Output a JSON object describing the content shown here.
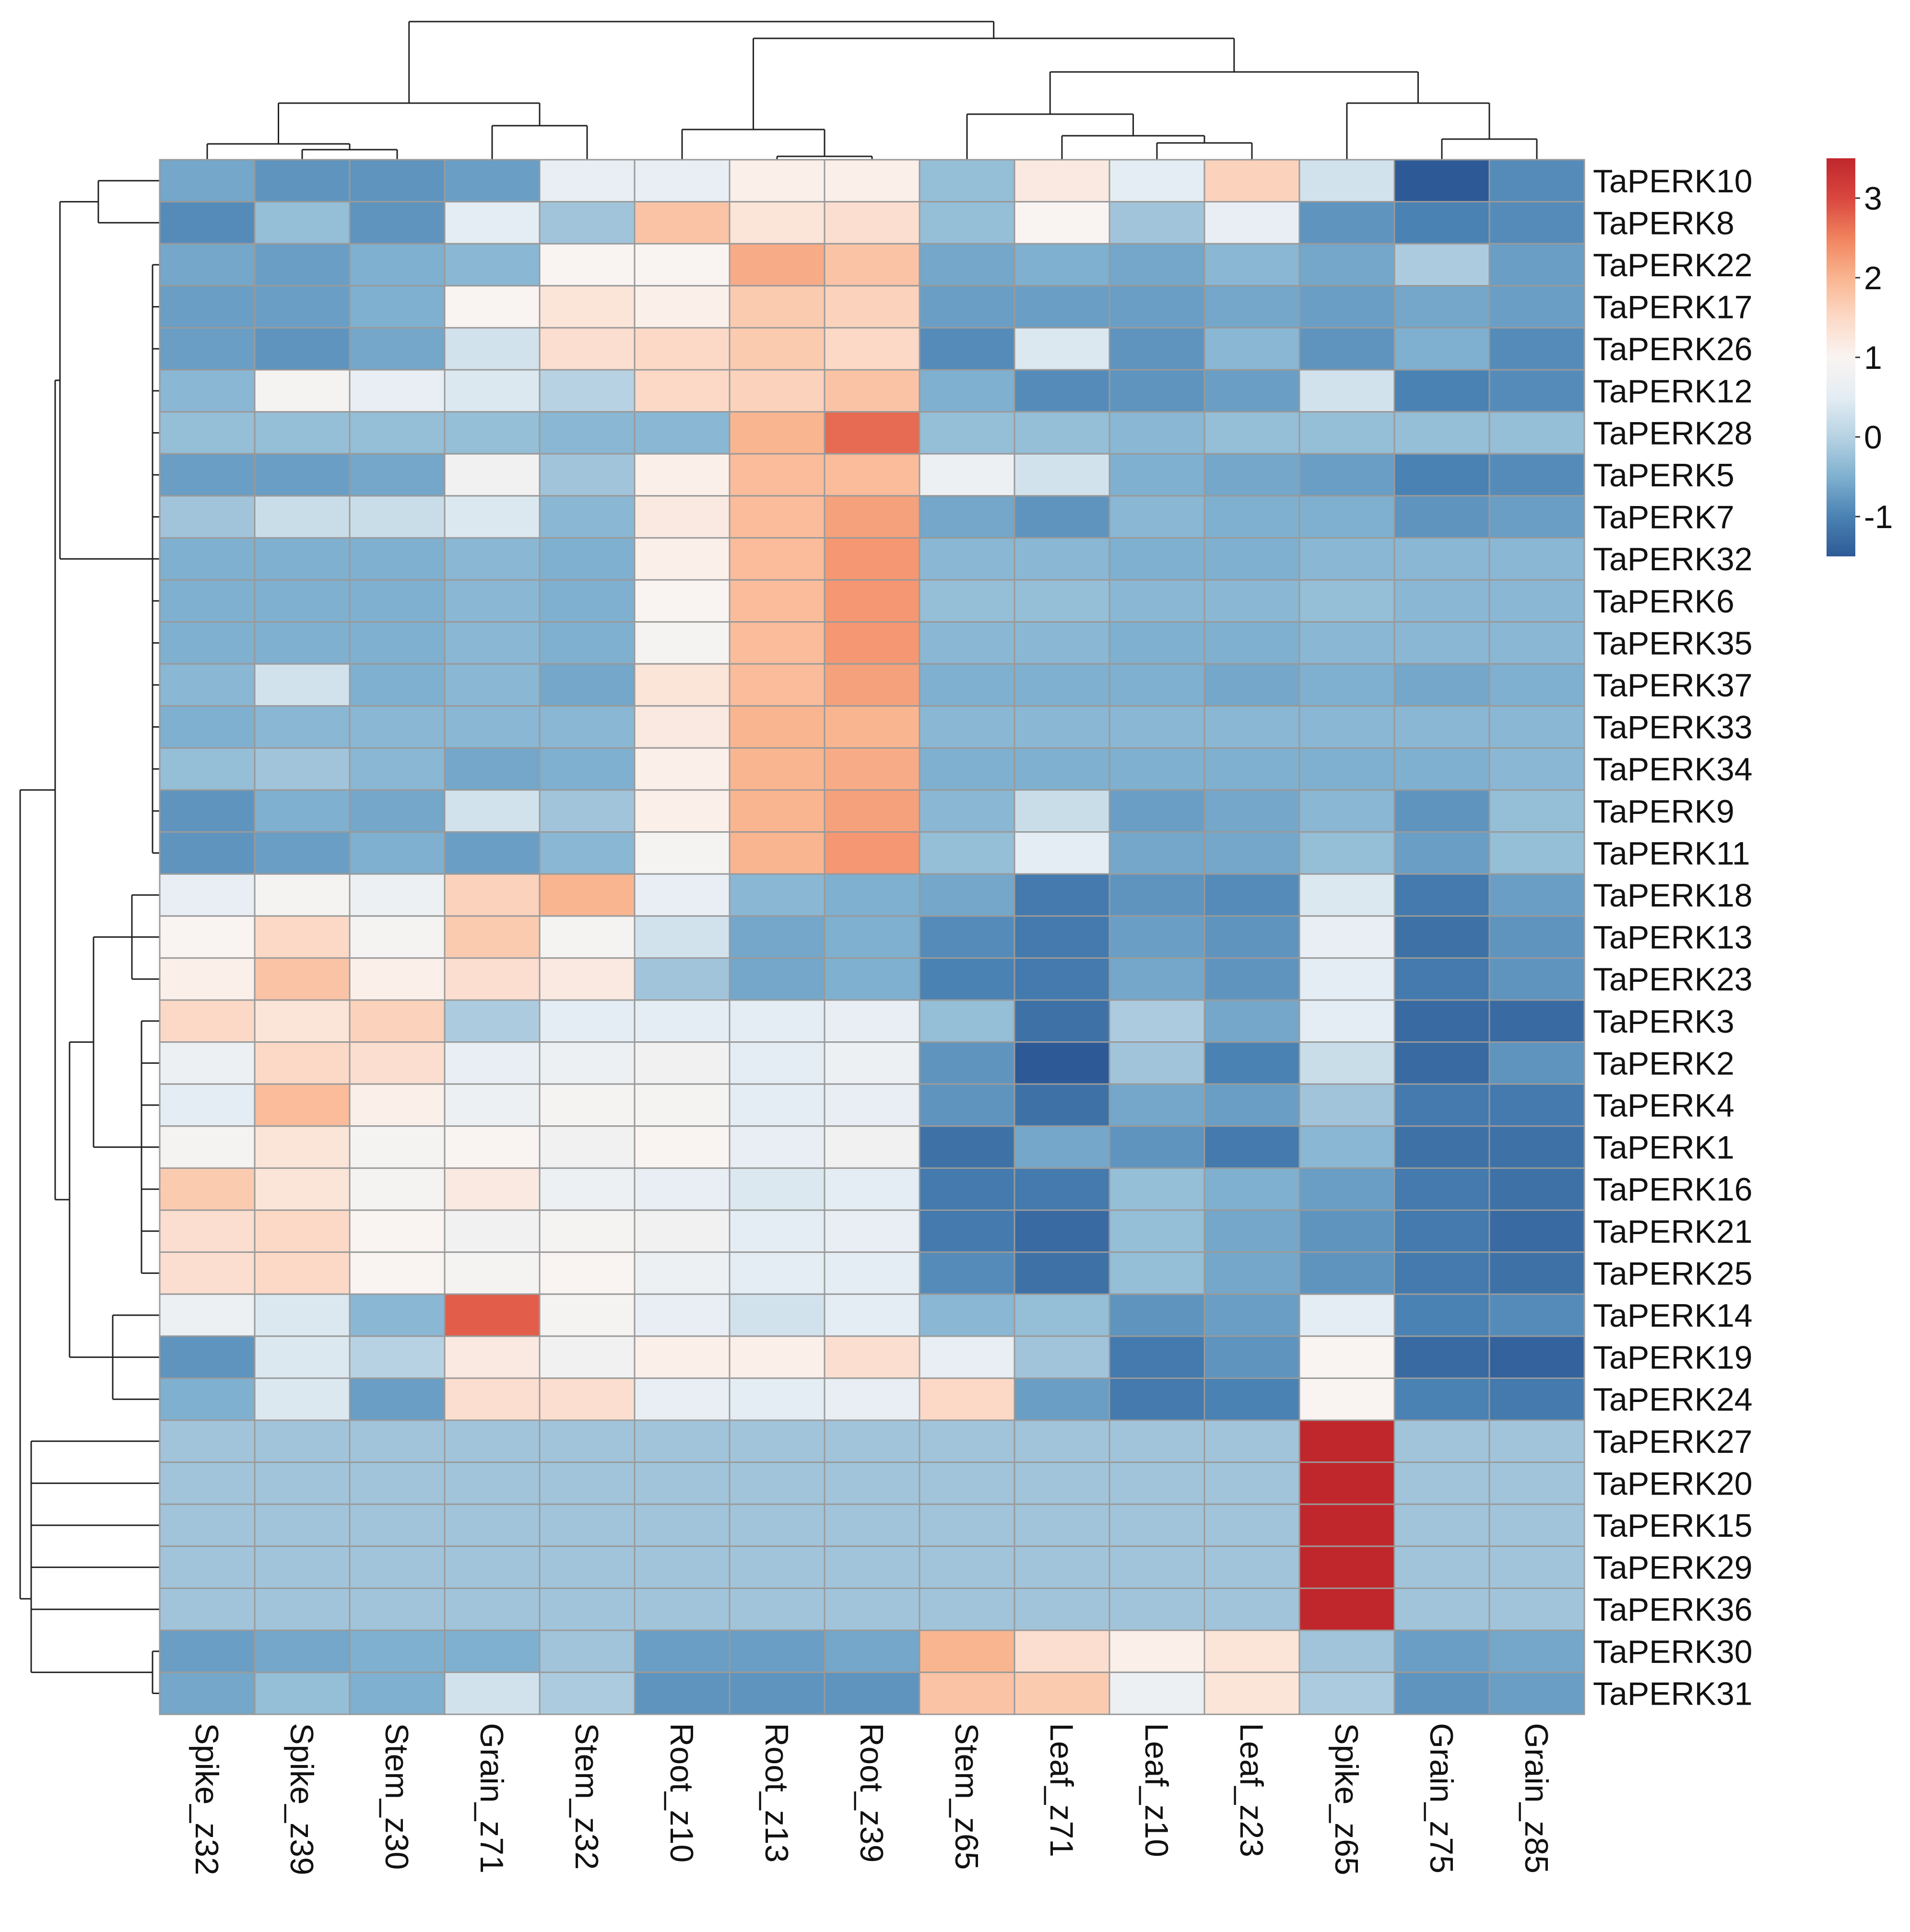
{
  "chart_data": {
    "type": "heatmap",
    "title": "",
    "columns": [
      "Spike_z32",
      "Spike_z39",
      "Stem_z30",
      "Grain_z71",
      "Stem_z32",
      "Root_z10",
      "Root_z13",
      "Root_z39",
      "Stem_z65",
      "Leaf_z71",
      "Leaf_z10",
      "Leaf_z23",
      "Spike_z65",
      "Grain_z75",
      "Grain_z85"
    ],
    "rows": [
      "TaPERK10",
      "TaPERK8",
      "TaPERK22",
      "TaPERK17",
      "TaPERK26",
      "TaPERK12",
      "TaPERK28",
      "TaPERK5",
      "TaPERK7",
      "TaPERK32",
      "TaPERK6",
      "TaPERK35",
      "TaPERK37",
      "TaPERK33",
      "TaPERK34",
      "TaPERK9",
      "TaPERK11",
      "TaPERK18",
      "TaPERK13",
      "TaPERK23",
      "TaPERK3",
      "TaPERK2",
      "TaPERK4",
      "TaPERK1",
      "TaPERK16",
      "TaPERK21",
      "TaPERK25",
      "TaPERK14",
      "TaPERK19",
      "TaPERK24",
      "TaPERK27",
      "TaPERK20",
      "TaPERK15",
      "TaPERK29",
      "TaPERK36",
      "TaPERK30",
      "TaPERK31"
    ],
    "values": [
      [
        -0.6,
        -0.8,
        -0.8,
        -0.7,
        0.6,
        0.6,
        1.1,
        1.1,
        -0.3,
        1.2,
        0.5,
        1.6,
        0.3,
        -1.5,
        -0.9
      ],
      [
        -0.9,
        -0.3,
        -0.8,
        0.5,
        -0.2,
        1.8,
        1.3,
        1.4,
        -0.3,
        1.0,
        -0.2,
        0.6,
        -0.8,
        -1.0,
        -0.9
      ],
      [
        -0.6,
        -0.7,
        -0.5,
        -0.4,
        1.0,
        1.0,
        2.1,
        1.8,
        -0.6,
        -0.5,
        -0.6,
        -0.4,
        -0.6,
        -0.1,
        -0.7
      ],
      [
        -0.7,
        -0.7,
        -0.5,
        1.0,
        1.3,
        1.1,
        1.7,
        1.6,
        -0.7,
        -0.7,
        -0.7,
        -0.6,
        -0.7,
        -0.6,
        -0.7
      ],
      [
        -0.7,
        -0.8,
        -0.6,
        0.3,
        1.4,
        1.5,
        1.7,
        1.5,
        -0.9,
        0.4,
        -0.8,
        -0.4,
        -0.8,
        -0.5,
        -0.9
      ],
      [
        -0.4,
        0.9,
        0.6,
        0.4,
        0.0,
        1.5,
        1.6,
        1.8,
        -0.5,
        -0.9,
        -0.8,
        -0.7,
        0.3,
        -1.0,
        -0.9
      ],
      [
        -0.3,
        -0.3,
        -0.3,
        -0.3,
        -0.4,
        -0.4,
        2.0,
        2.7,
        -0.3,
        -0.3,
        -0.4,
        -0.3,
        -0.3,
        -0.3,
        -0.3
      ],
      [
        -0.7,
        -0.7,
        -0.6,
        0.8,
        -0.2,
        1.1,
        1.9,
        1.9,
        0.7,
        0.3,
        -0.5,
        -0.6,
        -0.7,
        -1.0,
        -0.9
      ],
      [
        -0.2,
        0.2,
        0.2,
        0.4,
        -0.4,
        1.2,
        1.9,
        2.2,
        -0.6,
        -0.8,
        -0.4,
        -0.5,
        -0.5,
        -0.8,
        -0.7
      ],
      [
        -0.5,
        -0.5,
        -0.5,
        -0.4,
        -0.5,
        1.1,
        1.9,
        2.3,
        -0.4,
        -0.4,
        -0.5,
        -0.5,
        -0.4,
        -0.4,
        -0.4
      ],
      [
        -0.5,
        -0.5,
        -0.5,
        -0.4,
        -0.5,
        1.0,
        1.9,
        2.3,
        -0.3,
        -0.3,
        -0.4,
        -0.4,
        -0.3,
        -0.4,
        -0.4
      ],
      [
        -0.5,
        -0.5,
        -0.5,
        -0.4,
        -0.5,
        0.9,
        1.9,
        2.3,
        -0.4,
        -0.4,
        -0.5,
        -0.5,
        -0.4,
        -0.4,
        -0.4
      ],
      [
        -0.4,
        0.3,
        -0.5,
        -0.4,
        -0.6,
        1.3,
        1.9,
        2.2,
        -0.5,
        -0.5,
        -0.5,
        -0.6,
        -0.5,
        -0.6,
        -0.5
      ],
      [
        -0.5,
        -0.4,
        -0.4,
        -0.4,
        -0.4,
        1.2,
        2.0,
        2.0,
        -0.4,
        -0.4,
        -0.4,
        -0.4,
        -0.4,
        -0.4,
        -0.4
      ],
      [
        -0.3,
        -0.2,
        -0.4,
        -0.6,
        -0.5,
        1.1,
        2.0,
        2.1,
        -0.5,
        -0.5,
        -0.5,
        -0.5,
        -0.5,
        -0.5,
        -0.4
      ],
      [
        -0.8,
        -0.5,
        -0.6,
        0.3,
        -0.2,
        1.1,
        2.0,
        2.2,
        -0.4,
        0.2,
        -0.7,
        -0.6,
        -0.4,
        -0.8,
        -0.3
      ],
      [
        -0.8,
        -0.7,
        -0.5,
        -0.7,
        -0.4,
        0.9,
        2.0,
        2.3,
        -0.3,
        0.5,
        -0.6,
        -0.6,
        -0.3,
        -0.7,
        -0.3
      ],
      [
        0.6,
        0.9,
        0.7,
        1.6,
        2.0,
        0.6,
        -0.4,
        -0.5,
        -0.6,
        -1.1,
        -0.8,
        -0.9,
        0.4,
        -1.1,
        -0.7
      ],
      [
        1.0,
        1.5,
        0.9,
        1.7,
        0.9,
        0.3,
        -0.6,
        -0.5,
        -0.9,
        -1.1,
        -0.7,
        -0.8,
        0.6,
        -1.2,
        -0.8
      ],
      [
        1.1,
        1.8,
        1.1,
        1.4,
        1.2,
        -0.2,
        -0.6,
        -0.5,
        -1.0,
        -1.1,
        -0.6,
        -0.8,
        0.5,
        -1.1,
        -0.8
      ],
      [
        1.5,
        1.3,
        1.6,
        -0.1,
        0.5,
        0.5,
        0.5,
        0.6,
        -0.3,
        -1.2,
        -0.1,
        -0.6,
        0.5,
        -1.3,
        -1.3
      ],
      [
        0.7,
        1.5,
        1.4,
        0.6,
        0.7,
        0.8,
        0.5,
        0.7,
        -0.8,
        -1.5,
        -0.2,
        -1.0,
        0.2,
        -1.3,
        -0.8
      ],
      [
        0.5,
        1.9,
        1.1,
        0.7,
        0.9,
        0.9,
        0.5,
        0.6,
        -0.8,
        -1.2,
        -0.6,
        -0.7,
        -0.2,
        -1.1,
        -1.1
      ],
      [
        0.9,
        1.3,
        0.9,
        1.0,
        0.8,
        1.0,
        0.6,
        0.8,
        -1.2,
        -0.6,
        -0.8,
        -1.1,
        -0.4,
        -1.2,
        -1.2
      ],
      [
        1.7,
        1.3,
        0.9,
        1.2,
        0.7,
        0.6,
        0.4,
        0.5,
        -1.1,
        -1.1,
        -0.3,
        -0.5,
        -0.7,
        -1.1,
        -1.2
      ],
      [
        1.4,
        1.5,
        1.0,
        0.8,
        0.9,
        0.8,
        0.5,
        0.6,
        -1.1,
        -1.3,
        -0.3,
        -0.6,
        -0.8,
        -1.1,
        -1.3
      ],
      [
        1.4,
        1.5,
        1.0,
        0.9,
        1.0,
        0.7,
        0.5,
        0.5,
        -0.9,
        -1.2,
        -0.3,
        -0.6,
        -0.8,
        -1.1,
        -1.2
      ],
      [
        0.7,
        0.4,
        -0.4,
        2.8,
        0.9,
        0.6,
        0.3,
        0.5,
        -0.4,
        -0.3,
        -0.8,
        -0.7,
        0.5,
        -1.0,
        -0.9
      ],
      [
        -0.8,
        0.4,
        0.0,
        1.2,
        0.8,
        1.1,
        1.1,
        1.4,
        0.6,
        -0.2,
        -1.1,
        -0.8,
        1.0,
        -1.3,
        -1.4
      ],
      [
        -0.5,
        0.4,
        -0.7,
        1.4,
        1.4,
        0.6,
        0.5,
        0.6,
        1.5,
        -0.7,
        -1.1,
        -1.0,
        1.0,
        -1.0,
        -1.1
      ],
      [
        -0.2,
        -0.2,
        -0.2,
        -0.2,
        -0.2,
        -0.2,
        -0.2,
        -0.2,
        -0.2,
        -0.2,
        -0.2,
        -0.2,
        3.5,
        -0.2,
        -0.2
      ],
      [
        -0.2,
        -0.2,
        -0.2,
        -0.2,
        -0.2,
        -0.2,
        -0.2,
        -0.2,
        -0.2,
        -0.2,
        -0.2,
        -0.2,
        3.5,
        -0.2,
        -0.2
      ],
      [
        -0.2,
        -0.2,
        -0.2,
        -0.2,
        -0.2,
        -0.2,
        -0.2,
        -0.2,
        -0.2,
        -0.2,
        -0.2,
        -0.2,
        3.5,
        -0.2,
        -0.2
      ],
      [
        -0.2,
        -0.2,
        -0.2,
        -0.2,
        -0.2,
        -0.2,
        -0.2,
        -0.2,
        -0.2,
        -0.2,
        -0.2,
        -0.2,
        3.5,
        -0.2,
        -0.2
      ],
      [
        -0.2,
        -0.2,
        -0.2,
        -0.2,
        -0.2,
        -0.2,
        -0.2,
        -0.2,
        -0.2,
        -0.2,
        -0.2,
        -0.2,
        3.5,
        -0.2,
        -0.2
      ],
      [
        -0.7,
        -0.6,
        -0.5,
        -0.5,
        -0.2,
        -0.7,
        -0.7,
        -0.6,
        2.0,
        1.4,
        1.1,
        1.3,
        -0.2,
        -0.7,
        -0.6
      ],
      [
        -0.6,
        -0.3,
        -0.5,
        0.3,
        -0.1,
        -0.8,
        -0.8,
        -0.8,
        1.8,
        1.7,
        0.7,
        1.3,
        -0.1,
        -0.8,
        -0.7
      ]
    ],
    "color_scale": {
      "min": -1.5,
      "max": 3.5,
      "stops": [
        {
          "value": -1.5,
          "color": "#2d5a96"
        },
        {
          "value": -1.0,
          "color": "#4a82b3"
        },
        {
          "value": -0.5,
          "color": "#7fb0cf"
        },
        {
          "value": 0.0,
          "color": "#b7d2e3"
        },
        {
          "value": 0.5,
          "color": "#e4edf3"
        },
        {
          "value": 1.0,
          "color": "#f9f4f2"
        },
        {
          "value": 1.5,
          "color": "#fcd9c6"
        },
        {
          "value": 2.0,
          "color": "#f9b590"
        },
        {
          "value": 2.5,
          "color": "#f0835e"
        },
        {
          "value": 3.0,
          "color": "#d9463f"
        },
        {
          "value": 3.5,
          "color": "#c0272d"
        }
      ]
    },
    "legend": {
      "ticks": [
        3,
        2,
        1,
        0,
        -1
      ],
      "tick_labels": [
        "3",
        "2",
        "1",
        "0",
        "-1"
      ],
      "placement": "top-right"
    },
    "row_dendrogram_side": "left",
    "column_dendrogram_side": "top"
  }
}
